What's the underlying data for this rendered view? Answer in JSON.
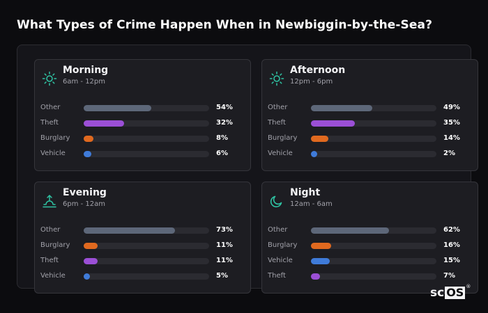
{
  "title": "What Types of Crime Happen When in Newbiggin-by-the-Sea?",
  "logo": {
    "text_a": "sc",
    "text_b": "OS",
    "mark": "®"
  },
  "colors": {
    "Other": "#5d6779",
    "Theft": "#9b4fd6",
    "Burglary": "#e0691f",
    "Vehicle": "#3f7bd9",
    "icon": "#2fc4a4"
  },
  "chart_data": [
    {
      "type": "bar",
      "title": "Morning",
      "subtitle": "6am - 12pm",
      "icon": "sun-icon",
      "categories": [
        "Other",
        "Theft",
        "Burglary",
        "Vehicle"
      ],
      "values": [
        54,
        32,
        8,
        6
      ],
      "value_labels": [
        "54%",
        "32%",
        "8%",
        "6%"
      ],
      "ylim": [
        0,
        100
      ]
    },
    {
      "type": "bar",
      "title": "Afternoon",
      "subtitle": "12pm - 6pm",
      "icon": "sun-icon",
      "categories": [
        "Other",
        "Theft",
        "Burglary",
        "Vehicle"
      ],
      "values": [
        49,
        35,
        14,
        2
      ],
      "value_labels": [
        "49%",
        "35%",
        "14%",
        "2%"
      ],
      "ylim": [
        0,
        100
      ]
    },
    {
      "type": "bar",
      "title": "Evening",
      "subtitle": "6pm - 12am",
      "icon": "sunset-icon",
      "categories": [
        "Other",
        "Burglary",
        "Theft",
        "Vehicle"
      ],
      "values": [
        73,
        11,
        11,
        5
      ],
      "value_labels": [
        "73%",
        "11%",
        "11%",
        "5%"
      ],
      "ylim": [
        0,
        100
      ]
    },
    {
      "type": "bar",
      "title": "Night",
      "subtitle": "12am - 6am",
      "icon": "moon-icon",
      "categories": [
        "Other",
        "Burglary",
        "Vehicle",
        "Theft"
      ],
      "values": [
        62,
        16,
        15,
        7
      ],
      "value_labels": [
        "62%",
        "16%",
        "15%",
        "7%"
      ],
      "ylim": [
        0,
        100
      ]
    }
  ]
}
